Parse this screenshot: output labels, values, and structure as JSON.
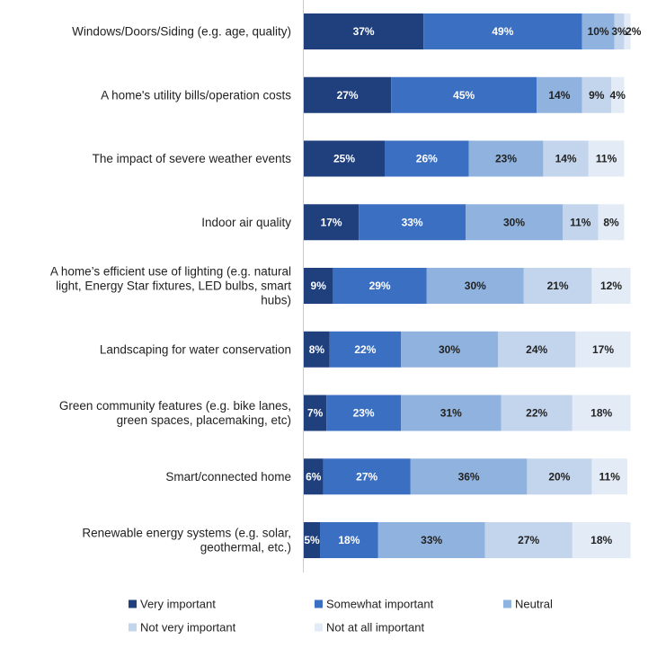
{
  "chart_data": {
    "type": "bar",
    "orientation": "horizontal",
    "stacked": true,
    "title": "",
    "xlabel": "",
    "ylabel": "",
    "xlim": [
      0,
      100
    ],
    "grid": false,
    "legend_position": "bottom",
    "categories": [
      [
        "Windows/Doors/Siding (e.g. age, quality)"
      ],
      [
        "A home's utility bills/operation costs"
      ],
      [
        "The impact of severe weather events"
      ],
      [
        "Indoor air quality"
      ],
      [
        "A home’s efficient use of lighting (e.g. natural",
        "light, Energy Star fixtures, LED bulbs, smart",
        "hubs)"
      ],
      [
        "Landscaping for water conservation"
      ],
      [
        "Green community features (e.g. bike lanes,",
        "green spaces, placemaking, etc)"
      ],
      [
        "Smart/connected home"
      ],
      [
        "Renewable energy systems (e.g. solar,",
        "geothermal, etc.)"
      ]
    ],
    "series": [
      {
        "name": "Very important",
        "color": "#1f3f7d",
        "label_color": "#ffffff",
        "values": [
          37,
          27,
          25,
          17,
          9,
          8,
          7,
          6,
          5
        ]
      },
      {
        "name": "Somewhat important",
        "color": "#3b6fc2",
        "label_color": "#ffffff",
        "values": [
          49,
          45,
          26,
          33,
          29,
          22,
          23,
          27,
          18
        ]
      },
      {
        "name": "Neutral",
        "color": "#8fb3de",
        "label_color": "#222222",
        "values": [
          10,
          14,
          23,
          30,
          30,
          30,
          31,
          36,
          33
        ]
      },
      {
        "name": "Not very important",
        "color": "#c3d5ec",
        "label_color": "#222222",
        "values": [
          3,
          9,
          14,
          11,
          21,
          24,
          22,
          20,
          27
        ]
      },
      {
        "name": "Not at all important",
        "color": "#e2ebf6",
        "label_color": "#222222",
        "values": [
          2,
          4,
          11,
          8,
          12,
          17,
          18,
          11,
          18
        ]
      }
    ]
  }
}
